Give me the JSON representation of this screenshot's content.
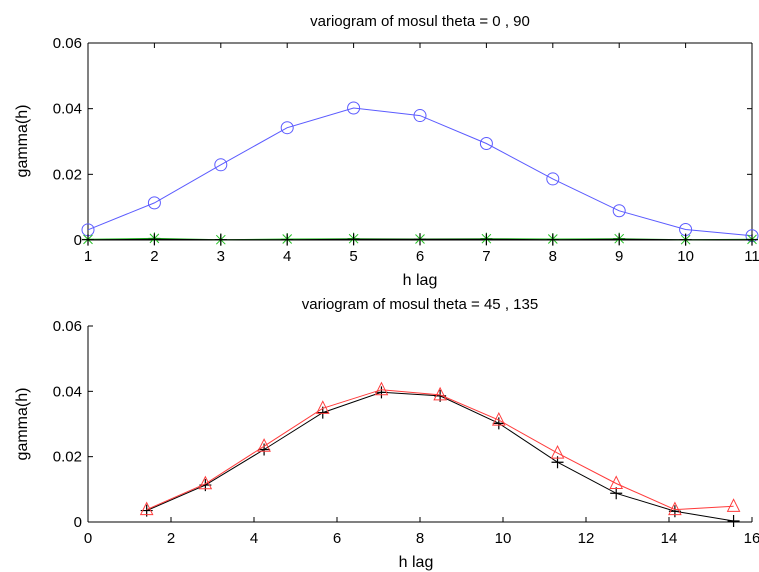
{
  "chart_data": [
    {
      "type": "line",
      "title": "variogram of mosul theta = 0 , 90",
      "xlabel": "h lag",
      "ylabel": "gamma(h)",
      "xlim": [
        1,
        11
      ],
      "ylim": [
        0,
        0.06
      ],
      "xticks": [
        "1",
        "2",
        "3",
        "4",
        "5",
        "6",
        "7",
        "8",
        "9",
        "10",
        "11"
      ],
      "yticks": [
        "0",
        "0.02",
        "0.04",
        "0.06"
      ],
      "grid": false,
      "series": [
        {
          "color": "#5b5bff",
          "marker": "circle",
          "x": [
            1,
            2,
            3,
            4,
            5,
            6,
            7,
            8,
            9,
            10,
            11
          ],
          "y": [
            0.0031,
            0.0113,
            0.0229,
            0.0342,
            0.0402,
            0.0379,
            0.0294,
            0.0186,
            0.0089,
            0.0032,
            0.0013
          ]
        },
        {
          "color": "#22c022",
          "marker": "star",
          "x": [
            1,
            2,
            3,
            4,
            5,
            6,
            7,
            8,
            9,
            10,
            11
          ],
          "y": [
            0.0002,
            0.0005,
            0.0001,
            0.0003,
            0.0004,
            0.0003,
            0.0004,
            0.0003,
            0.0004,
            0.0001,
            0.0002
          ]
        },
        {
          "color": "#000000",
          "marker": "plus",
          "x": [
            1,
            2,
            3,
            4,
            5,
            6,
            7,
            8,
            9,
            10,
            11
          ],
          "y": [
            0.0001,
            0.0002,
            0.0001,
            0.0001,
            0.0002,
            0.0002,
            0.0002,
            0.0001,
            0.0002,
            0.0001,
            0.0001
          ]
        }
      ]
    },
    {
      "type": "line",
      "title": "variogram of mosul theta = 45  ,  135",
      "xlabel": "h lag",
      "ylabel": "gamma(h)",
      "xlim": [
        0,
        16
      ],
      "ylim": [
        0,
        0.06
      ],
      "xticks": [
        "0",
        "2",
        "4",
        "6",
        "8",
        "10",
        "12",
        "14",
        "16"
      ],
      "yticks": [
        "0",
        "0.02",
        "0.04",
        "0.06"
      ],
      "grid": false,
      "series": [
        {
          "color": "#000000",
          "marker": "plus",
          "x": [
            1.414,
            2.828,
            4.243,
            5.657,
            7.071,
            8.485,
            9.899,
            11.314,
            12.728,
            14.142,
            15.556
          ],
          "y": [
            0.0035,
            0.0113,
            0.0222,
            0.0335,
            0.0397,
            0.0386,
            0.0302,
            0.0183,
            0.0088,
            0.0033,
            0.0003
          ]
        },
        {
          "color": "#ff3b3b",
          "marker": "triangle",
          "x": [
            1.414,
            2.828,
            4.243,
            5.657,
            7.071,
            8.485,
            9.899,
            11.314,
            12.728,
            14.142,
            15.556
          ],
          "y": [
            0.0038,
            0.0117,
            0.0232,
            0.0348,
            0.0405,
            0.0389,
            0.0312,
            0.0211,
            0.0118,
            0.0038,
            0.0048
          ]
        }
      ]
    }
  ]
}
